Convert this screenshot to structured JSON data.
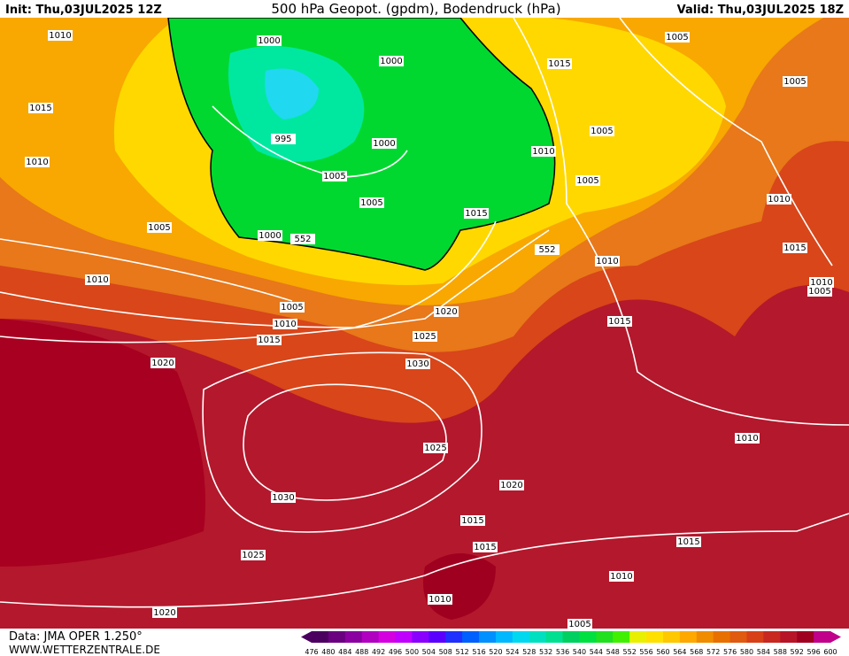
{
  "header": {
    "init": "Init: Thu,03JUL2025 12Z",
    "title": "500 hPa Geopot. (gpdm), Bodendruck (hPa)",
    "valid": "Valid: Thu,03JUL2025 18Z"
  },
  "footer": {
    "data": "Data: JMA OPER 1.250°",
    "site": "WWW.WETTERZENTRALE.DE"
  },
  "isobar_labels": [
    1010,
    1015,
    1010,
    1005,
    1010,
    1000,
    1000,
    995,
    1000,
    1005,
    1005,
    1000,
    552,
    1015,
    1010,
    1005,
    1005,
    1015,
    1005,
    1005,
    1010,
    1015,
    1010,
    552,
    1010,
    1005,
    1020,
    1005,
    1010,
    1015,
    1025,
    1030,
    1020,
    1015,
    1025,
    1020,
    1030,
    1010,
    1015,
    1015,
    1015,
    1025,
    1010,
    1010,
    1020,
    1005
  ],
  "colorbar": {
    "ticks": [
      476,
      480,
      484,
      488,
      492,
      496,
      500,
      504,
      508,
      512,
      516,
      520,
      524,
      528,
      532,
      536,
      540,
      544,
      548,
      552,
      556,
      560,
      564,
      568,
      572,
      576,
      580,
      584,
      588,
      592,
      596,
      600
    ],
    "colors": [
      "#4b0060",
      "#6a0080",
      "#8a00a0",
      "#b000c0",
      "#d400e0",
      "#c000ff",
      "#8a00ff",
      "#5a00ff",
      "#2030ff",
      "#0060ff",
      "#0090ff",
      "#00b8ff",
      "#00d8f0",
      "#00e0c0",
      "#00e090",
      "#00d060",
      "#00e040",
      "#20e020",
      "#40f000",
      "#e8f000",
      "#ffe000",
      "#ffc800",
      "#ffa800",
      "#f08c00",
      "#e87000",
      "#e05a10",
      "#d84018",
      "#c82820",
      "#b81428",
      "#a00020",
      "#c0008a"
    ]
  }
}
